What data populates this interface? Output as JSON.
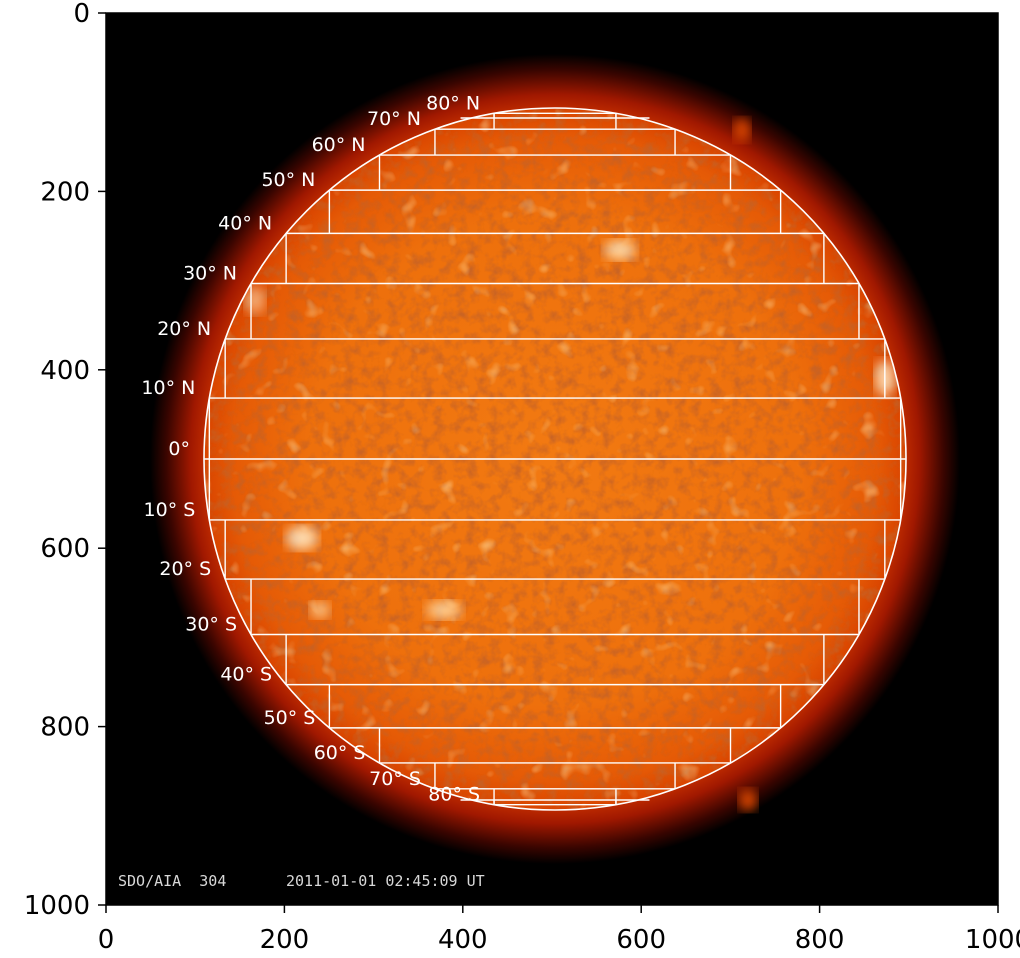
{
  "x_ticks": [
    "0",
    "200",
    "400",
    "600",
    "800",
    "1000"
  ],
  "y_ticks": [
    "0",
    "200",
    "400",
    "600",
    "800",
    "1000"
  ],
  "caption": {
    "instrument": "SDO/AIA  304",
    "timestamp": "2011-01-01 02:45:09 UT"
  },
  "latitude_labels": [
    "80° N",
    "70° N",
    "60° N",
    "50° N",
    "40° N",
    "30° N",
    "20° N",
    "10° N",
    "0°",
    "10° S",
    "20° S",
    "30° S",
    "40° S",
    "50° S",
    "60° S",
    "70° S",
    "80° S"
  ],
  "colors": {
    "background": "#000000",
    "sun_core": "#f07a10",
    "sun_limb": "#d83a00",
    "grid_lines": "#ffffff"
  }
}
